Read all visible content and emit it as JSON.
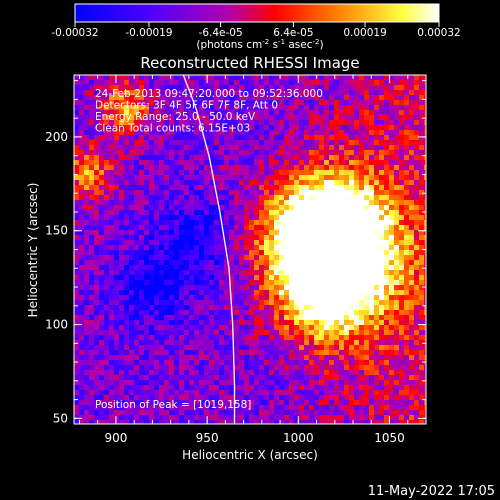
{
  "colorbar": {
    "tick_labels": [
      "-0.00032",
      "-0.00019",
      "-6.4e-05",
      "6.4e-05",
      "0.00019",
      "0.00032"
    ],
    "tick_values": [
      -0.00032,
      -0.00019,
      -6.4e-05,
      6.4e-05,
      0.00019,
      0.00032
    ],
    "range": [
      -0.00032,
      0.00032
    ],
    "units_label": "(photons cm",
    "units_exp1": "-2",
    "units_mid": " s",
    "units_exp2": "-1",
    "units_tail": " asec",
    "units_exp3": "-2",
    "units_close": ")",
    "colormap": "blue-purple-red-yellow-white"
  },
  "plot": {
    "title": "Reconstructed RHESSI Image",
    "xlabel": "Heliocentric X (arcsec)",
    "ylabel": "Heliocentric Y (arcsec)",
    "annotations": [
      "24-Feb-2013 09:47:20.000 to 09:52:36.000",
      "Detectors: 3F 4F 5F 6F 7F 8F, Att 0",
      "Energy Range: 25.0 - 50.0 keV",
      "Clean     Total counts: 6.15E+03"
    ],
    "peak_text": "Position of Peak = [1019,158]"
  },
  "footer": {
    "timestamp": "11-May-2022 17:05"
  },
  "chart_data": {
    "type": "heatmap",
    "title": "Reconstructed RHESSI Image",
    "xlabel": "Heliocentric X (arcsec)",
    "ylabel": "Heliocentric Y (arcsec)",
    "xlim": [
      877,
      1070
    ],
    "ylim": [
      47,
      233
    ],
    "xticks": [
      900,
      950,
      1000,
      1050
    ],
    "yticks": [
      50,
      100,
      150,
      200
    ],
    "value_range": [
      -0.00032,
      0.00032
    ],
    "units": "photons cm^-2 s^-1 asec^-2",
    "peak_position": [
      1019,
      158
    ],
    "limb_curve": [
      [
        937,
        233
      ],
      [
        944,
        215
      ],
      [
        951,
        190
      ],
      [
        957,
        160
      ],
      [
        962,
        130
      ],
      [
        964,
        100
      ],
      [
        965,
        68
      ],
      [
        965,
        47
      ]
    ],
    "hot_regions": [
      {
        "x": 1019,
        "y": 158
      },
      {
        "x": 1002,
        "y": 145
      },
      {
        "x": 1030,
        "y": 135
      },
      {
        "x": 1015,
        "y": 115
      },
      {
        "x": 885,
        "y": 180
      },
      {
        "x": 905,
        "y": 215
      }
    ],
    "cold_regions": [
      {
        "x": 945,
        "y": 145
      },
      {
        "x": 920,
        "y": 120
      }
    ]
  }
}
